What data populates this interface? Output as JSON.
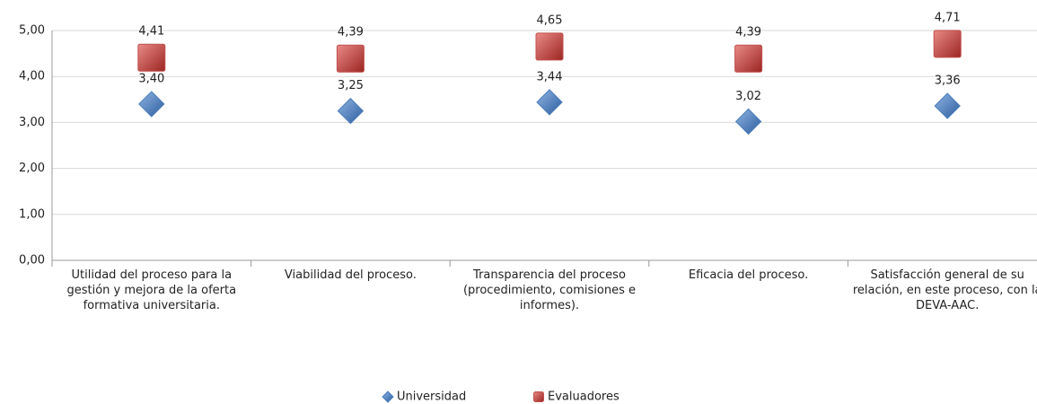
{
  "chart_data": {
    "type": "scatter",
    "categories": [
      "Utilidad del proceso para la gestión y mejora de la oferta formativa universitaria.",
      "Viabilidad del proceso.",
      "Transparencia del proceso (procedimiento, comisiones e informes).",
      "Eficacia del proceso.",
      "Satisfacción general de su relación, en este proceso, con la DEVA-AAC."
    ],
    "series": [
      {
        "name": "Universidad",
        "color": "#4a7ebb",
        "marker": "diamond",
        "values": [
          3.4,
          3.25,
          3.44,
          3.02,
          3.36
        ],
        "value_labels": [
          "3,40",
          "3,25",
          "3,44",
          "3,02",
          "3,36"
        ]
      },
      {
        "name": "Evaluadores",
        "color": "#c0504d",
        "marker": "square",
        "values": [
          4.41,
          4.39,
          4.65,
          4.39,
          4.71
        ],
        "value_labels": [
          "4,41",
          "4,39",
          "4,65",
          "4,39",
          "4,71"
        ]
      }
    ],
    "ylim": [
      0,
      5
    ],
    "yticks": [
      {
        "value": 0,
        "label": "0,00"
      },
      {
        "value": 1,
        "label": "1,00"
      },
      {
        "value": 2,
        "label": "2,00"
      },
      {
        "value": 3,
        "label": "3,00"
      },
      {
        "value": 4,
        "label": "4,00"
      },
      {
        "value": 5,
        "label": "5,00"
      }
    ],
    "grid": true,
    "legend": "bottom"
  }
}
